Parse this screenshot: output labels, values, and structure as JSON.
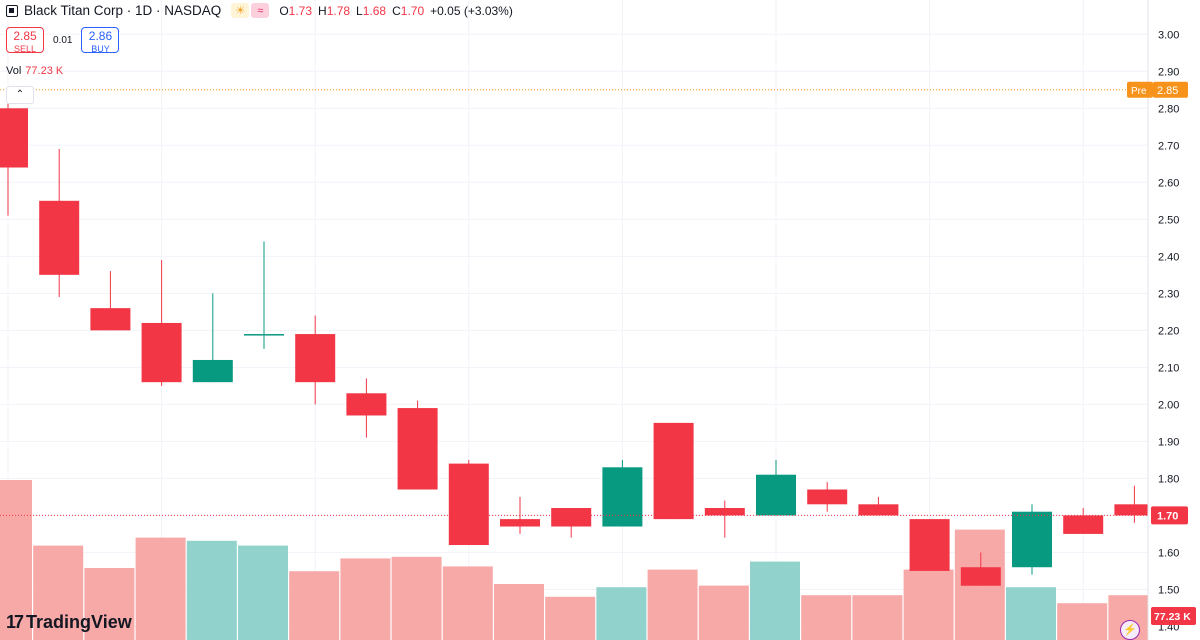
{
  "header": {
    "title": "Black Titan Corp · 1D · NASDAQ",
    "open_label": "O",
    "open": "1.73",
    "high_label": "H",
    "high": "1.78",
    "low_label": "L",
    "low": "1.68",
    "close_label": "C",
    "close": "1.70",
    "change": "+0.05 (+3.03%)"
  },
  "trade": {
    "sell_price": "2.85",
    "sell_label": "SELL",
    "spread": "0.01",
    "buy_price": "2.86",
    "buy_label": "BUY"
  },
  "volume": {
    "label": "Vol",
    "value": "77.23 K"
  },
  "brand": "TradingView",
  "colors": {
    "up": "#089981",
    "down": "#f23645",
    "pre": "#f7931a",
    "up_vol": "#92d2cc",
    "down_vol": "#f7a9a7"
  },
  "chart_data": {
    "type": "candlestick",
    "title": "Black Titan Corp · 1D · NASDAQ",
    "ylim": [
      1.385,
      3.025
    ],
    "y_ticks": [
      "3.00",
      "2.90",
      "2.80",
      "2.70",
      "2.60",
      "2.50",
      "2.40",
      "2.30",
      "2.20",
      "2.10",
      "2.00",
      "1.90",
      "1.80",
      "1.70",
      "1.60",
      "1.50",
      "1.40"
    ],
    "pre_market": {
      "label": "Pre",
      "value": 2.85
    },
    "last_price": 1.7,
    "last_price_label": "1.70",
    "last_volume_label": "77.23 K",
    "candles": [
      {
        "o": 2.8,
        "h": 2.85,
        "l": 2.51,
        "c": 2.64
      },
      {
        "o": 2.55,
        "h": 2.69,
        "l": 2.29,
        "c": 2.35
      },
      {
        "o": 2.26,
        "h": 2.36,
        "l": 2.2,
        "c": 2.2
      },
      {
        "o": 2.22,
        "h": 2.39,
        "l": 2.05,
        "c": 2.06
      },
      {
        "o": 2.06,
        "h": 2.3,
        "l": 2.06,
        "c": 2.12
      },
      {
        "o": 2.19,
        "h": 2.44,
        "l": 2.15,
        "c": 2.19
      },
      {
        "o": 2.19,
        "h": 2.24,
        "l": 2.0,
        "c": 2.06
      },
      {
        "o": 2.03,
        "h": 2.07,
        "l": 1.91,
        "c": 1.97
      },
      {
        "o": 1.99,
        "h": 2.01,
        "l": 1.77,
        "c": 1.77
      },
      {
        "o": 1.84,
        "h": 1.85,
        "l": 1.62,
        "c": 1.62
      },
      {
        "o": 1.69,
        "h": 1.75,
        "l": 1.65,
        "c": 1.67
      },
      {
        "o": 1.72,
        "h": 1.72,
        "l": 1.64,
        "c": 1.67
      },
      {
        "o": 1.67,
        "h": 1.85,
        "l": 1.67,
        "c": 1.83
      },
      {
        "o": 1.95,
        "h": 1.95,
        "l": 1.69,
        "c": 1.69
      },
      {
        "o": 1.72,
        "h": 1.74,
        "l": 1.64,
        "c": 1.7
      },
      {
        "o": 1.7,
        "h": 1.85,
        "l": 1.7,
        "c": 1.81
      },
      {
        "o": 1.77,
        "h": 1.79,
        "l": 1.71,
        "c": 1.73
      },
      {
        "o": 1.73,
        "h": 1.75,
        "l": 1.7,
        "c": 1.7
      },
      {
        "o": 1.69,
        "h": 1.69,
        "l": 1.55,
        "c": 1.55
      },
      {
        "o": 1.56,
        "h": 1.6,
        "l": 1.51,
        "c": 1.51
      },
      {
        "o": 1.56,
        "h": 1.73,
        "l": 1.54,
        "c": 1.71
      },
      {
        "o": 1.7,
        "h": 1.72,
        "l": 1.65,
        "c": 1.65
      },
      {
        "o": 1.73,
        "h": 1.78,
        "l": 1.68,
        "c": 1.7
      }
    ],
    "volume_relative": [
      1.0,
      0.59,
      0.45,
      0.64,
      0.62,
      0.59,
      0.43,
      0.51,
      0.52,
      0.46,
      0.35,
      0.27,
      0.33,
      0.44,
      0.34,
      0.49,
      0.28,
      0.28,
      0.44,
      0.69,
      0.33,
      0.23,
      0.28
    ]
  }
}
